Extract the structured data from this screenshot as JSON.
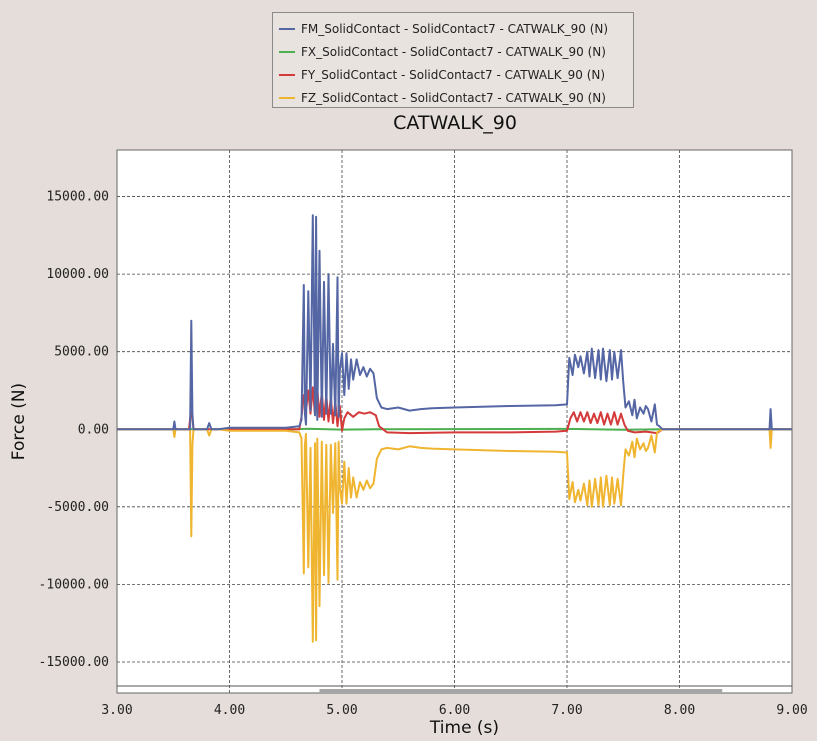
{
  "chart_data": {
    "type": "line",
    "title": "CATWALK_90",
    "xlabel": "Time (s)",
    "ylabel": "Force (N)",
    "xlim": [
      3.0,
      9.0
    ],
    "ylim": [
      -17000,
      18000
    ],
    "grid": true,
    "legend_position": "top",
    "xticks": [
      3.0,
      4.0,
      5.0,
      6.0,
      7.0,
      8.0,
      9.0
    ],
    "xtick_labels": [
      "3.00",
      "4.00",
      "5.00",
      "6.00",
      "7.00",
      "8.00",
      "9.00"
    ],
    "yticks": [
      15000,
      10000,
      5000,
      0,
      -5000,
      -10000,
      -15000
    ],
    "ytick_labels": [
      "15000.00",
      "10000.00",
      "5000.00",
      "0.00",
      "-5000.00",
      "-10000.00",
      "-15000.00"
    ],
    "scrollbar_range": [
      4.8,
      8.38
    ],
    "series": [
      {
        "name": "FM_SolidContact - SolidContact7 - CATWALK_90 (N)",
        "color": "#5566a4",
        "x": [
          3.0,
          3.5,
          3.51,
          3.52,
          3.65,
          3.66,
          3.67,
          3.68,
          3.8,
          3.82,
          3.84,
          3.9,
          4.0,
          4.5,
          4.62,
          4.64,
          4.66,
          4.67,
          4.68,
          4.7,
          4.72,
          4.74,
          4.76,
          4.77,
          4.78,
          4.8,
          4.82,
          4.84,
          4.86,
          4.88,
          4.9,
          4.92,
          4.94,
          4.96,
          4.97,
          4.98,
          5.0,
          5.02,
          5.04,
          5.06,
          5.08,
          5.1,
          5.13,
          5.16,
          5.19,
          5.22,
          5.25,
          5.28,
          5.31,
          5.35,
          5.4,
          5.5,
          5.6,
          5.7,
          5.8,
          6.0,
          6.5,
          6.9,
          7.0,
          7.02,
          7.05,
          7.07,
          7.1,
          7.12,
          7.15,
          7.18,
          7.2,
          7.22,
          7.25,
          7.28,
          7.3,
          7.32,
          7.35,
          7.38,
          7.4,
          7.42,
          7.45,
          7.48,
          7.5,
          7.52,
          7.55,
          7.58,
          7.6,
          7.62,
          7.65,
          7.68,
          7.7,
          7.72,
          7.75,
          7.78,
          7.8,
          7.82,
          7.85,
          7.9,
          8.0,
          8.8,
          8.81,
          8.82,
          8.83,
          9.0
        ],
        "values": [
          0,
          0,
          500,
          0,
          0,
          7000,
          1000,
          0,
          0,
          400,
          0,
          0,
          100,
          100,
          200,
          600,
          9300,
          1000,
          300,
          8900,
          1200,
          13800,
          900,
          13700,
          600,
          11500,
          800,
          9500,
          1000,
          10000,
          1000,
          5500,
          900,
          9800,
          800,
          3800,
          4900,
          2200,
          4900,
          2600,
          4500,
          3200,
          4500,
          3500,
          4000,
          3400,
          3900,
          3600,
          2000,
          1400,
          1300,
          1400,
          1200,
          1300,
          1350,
          1400,
          1500,
          1550,
          1600,
          4600,
          3500,
          4800,
          4000,
          4700,
          3600,
          5000,
          3400,
          5200,
          3300,
          5100,
          3200,
          5200,
          3100,
          5100,
          3200,
          5000,
          3300,
          5100,
          3000,
          1400,
          1800,
          900,
          1900,
          700,
          1400,
          1000,
          1500,
          1300,
          500,
          1600,
          300,
          200,
          0,
          0,
          0,
          0,
          1300,
          0,
          0,
          0
        ]
      },
      {
        "name": "FX_SolidContact - SolidContact7 - CATWALK_90 (N)",
        "color": "#4caf50",
        "x": [
          3.0,
          4.6,
          4.7,
          5.0,
          5.3,
          7.0,
          7.5,
          7.85,
          9.0
        ],
        "values": [
          0,
          0,
          30,
          -20,
          0,
          20,
          -30,
          0,
          0
        ]
      },
      {
        "name": "FY_SolidContact - SolidContact7 - CATWALK_90 (N)",
        "color": "#d43a3a",
        "x": [
          3.0,
          3.64,
          3.66,
          3.68,
          4.62,
          4.64,
          4.66,
          4.68,
          4.7,
          4.72,
          4.74,
          4.76,
          4.78,
          4.8,
          4.82,
          4.84,
          4.86,
          4.88,
          4.9,
          4.92,
          4.94,
          4.96,
          4.98,
          5.0,
          5.02,
          5.05,
          5.1,
          5.15,
          5.2,
          5.25,
          5.3,
          5.33,
          5.4,
          5.6,
          6.0,
          6.5,
          6.9,
          7.0,
          7.03,
          7.06,
          7.09,
          7.12,
          7.15,
          7.18,
          7.21,
          7.24,
          7.27,
          7.3,
          7.33,
          7.36,
          7.39,
          7.42,
          7.45,
          7.48,
          7.51,
          7.54,
          7.6,
          7.7,
          7.8,
          7.85,
          9.0
        ],
        "values": [
          0,
          0,
          1400,
          0,
          0,
          800,
          2200,
          1200,
          2500,
          1000,
          2700,
          900,
          2600,
          800,
          2400,
          600,
          2200,
          500,
          2100,
          400,
          1800,
          200,
          1500,
          -100,
          700,
          1100,
          800,
          1100,
          1000,
          1100,
          900,
          200,
          -200,
          -250,
          -200,
          -200,
          -150,
          -100,
          700,
          1100,
          500,
          1100,
          500,
          1100,
          400,
          1000,
          400,
          1100,
          300,
          1000,
          300,
          1100,
          300,
          1000,
          300,
          -100,
          -200,
          -150,
          -250,
          0,
          0
        ]
      },
      {
        "name": "FZ_SolidContact - SolidContact7 - CATWALK_90 (N)",
        "color": "#f0b530",
        "x": [
          3.0,
          3.5,
          3.51,
          3.52,
          3.65,
          3.66,
          3.67,
          3.68,
          3.8,
          3.82,
          3.84,
          3.9,
          4.0,
          4.5,
          4.62,
          4.64,
          4.66,
          4.67,
          4.68,
          4.7,
          4.72,
          4.74,
          4.76,
          4.77,
          4.78,
          4.8,
          4.82,
          4.84,
          4.86,
          4.88,
          4.9,
          4.92,
          4.94,
          4.96,
          4.97,
          4.98,
          5.0,
          5.02,
          5.04,
          5.06,
          5.08,
          5.1,
          5.13,
          5.16,
          5.19,
          5.22,
          5.25,
          5.28,
          5.31,
          5.35,
          5.4,
          5.5,
          5.6,
          5.7,
          5.8,
          6.0,
          6.5,
          6.9,
          7.0,
          7.02,
          7.05,
          7.07,
          7.1,
          7.12,
          7.15,
          7.18,
          7.2,
          7.22,
          7.25,
          7.28,
          7.3,
          7.32,
          7.35,
          7.38,
          7.4,
          7.42,
          7.45,
          7.48,
          7.5,
          7.52,
          7.55,
          7.58,
          7.6,
          7.62,
          7.65,
          7.68,
          7.7,
          7.72,
          7.75,
          7.78,
          7.8,
          7.82,
          7.85,
          7.9,
          8.0,
          8.8,
          8.81,
          8.82,
          8.83,
          9.0
        ],
        "values": [
          0,
          0,
          -500,
          0,
          0,
          -6900,
          -1000,
          0,
          0,
          -400,
          0,
          0,
          -100,
          -100,
          -200,
          -600,
          -9300,
          -1000,
          -300,
          -8900,
          -1200,
          -13700,
          -900,
          -13600,
          -600,
          -11400,
          -800,
          -9400,
          -1000,
          -9900,
          -1000,
          -5400,
          -900,
          -9700,
          -800,
          -3700,
          -4800,
          -2100,
          -4800,
          -2500,
          -4400,
          -3100,
          -4400,
          -3400,
          -3900,
          -3300,
          -3800,
          -3500,
          -1900,
          -1300,
          -1200,
          -1300,
          -1100,
          -1200,
          -1250,
          -1300,
          -1400,
          -1450,
          -1500,
          -4500,
          -3400,
          -4700,
          -3900,
          -4600,
          -3500,
          -4900,
          -3300,
          -5000,
          -3200,
          -4900,
          -3100,
          -5000,
          -3000,
          -4900,
          -3100,
          -4800,
          -3200,
          -4900,
          -2900,
          -1300,
          -1700,
          -800,
          -1800,
          -600,
          -1300,
          -900,
          -1400,
          -1200,
          -400,
          -1500,
          -200,
          -100,
          0,
          0,
          0,
          0,
          -1200,
          0,
          0,
          0
        ]
      }
    ]
  }
}
